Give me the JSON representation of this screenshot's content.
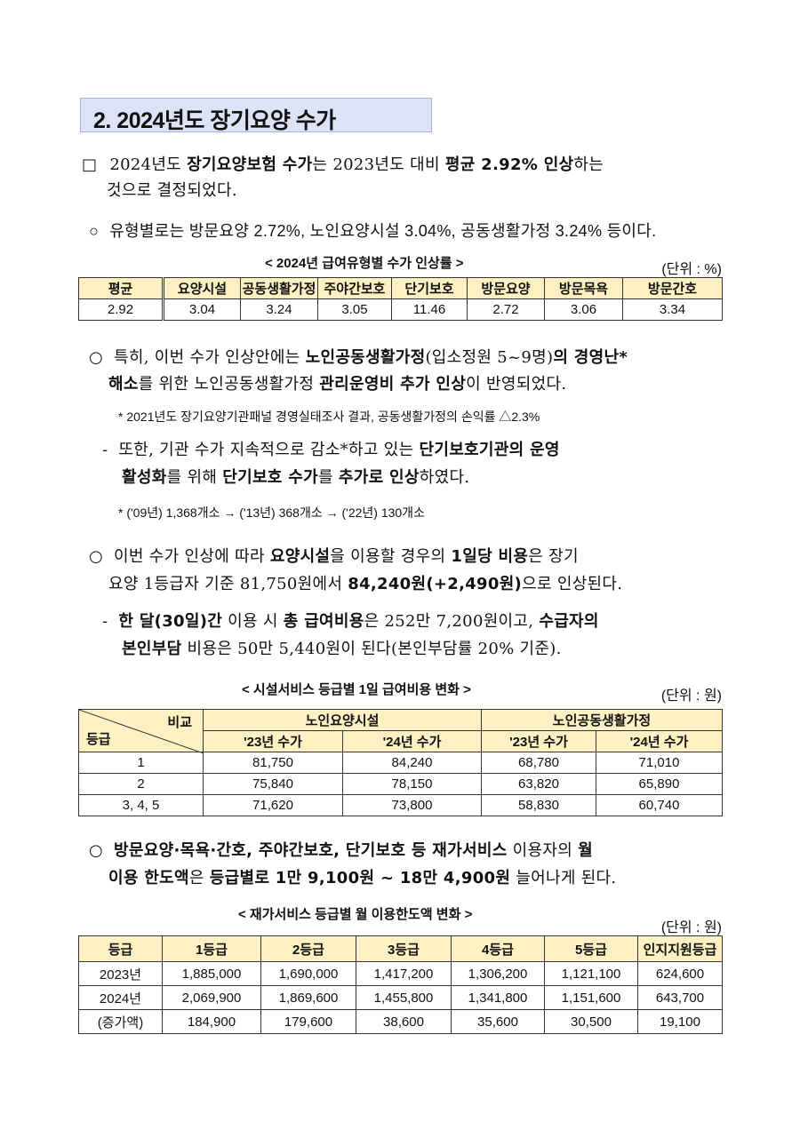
{
  "section_title": "2. 2024년도 장기요양 수가",
  "paragraphs": [
    {
      "id": "p1a",
      "bullet": "□",
      "segments": [
        {
          "t": "2024년도 ",
          "b": false
        },
        {
          "t": "장기요양보험 수가",
          "b": true
        },
        {
          "t": "는 2023년도 대비 ",
          "b": false
        },
        {
          "t": "평균 2.92% 인상",
          "b": true
        },
        {
          "t": "하는",
          "b": false
        }
      ]
    },
    {
      "id": "p1b",
      "segments": [
        {
          "t": "것으로 결정되었다.",
          "b": false
        }
      ]
    },
    {
      "id": "p2",
      "bullet": "○",
      "segments": [
        {
          "t": "유형별로는 방문요양 2.72%, 노인요양시설 3.04%, 공동생활가정 3.24% 등이다.",
          "b": false
        }
      ]
    },
    {
      "id": "p3a",
      "bullet": "○",
      "segments": [
        {
          "t": "특히, 이번 수가 인상안에는 ",
          "b": false
        },
        {
          "t": "노인공동생활가정",
          "b": true
        },
        {
          "t": "(입소정원 5~9명)",
          "b": false
        },
        {
          "t": "의 경영난*",
          "b": true
        }
      ]
    },
    {
      "id": "p3b",
      "segments": [
        {
          "t": "해소",
          "b": true
        },
        {
          "t": "를 위한 노인공동생활가정 ",
          "b": false
        },
        {
          "t": "관리운영비 추가 인상",
          "b": true
        },
        {
          "t": "이 반영되었다.",
          "b": false
        }
      ]
    },
    {
      "id": "p4a",
      "bullet": "-",
      "segments": [
        {
          "t": "또한, 기관 수가 지속적으로 감소*하고 있는 ",
          "b": false
        },
        {
          "t": "단기보호기관의 운영",
          "b": true
        }
      ]
    },
    {
      "id": "p4b",
      "segments": [
        {
          "t": "활성화",
          "b": true
        },
        {
          "t": "를 위해 ",
          "b": false
        },
        {
          "t": "단기보호 수가",
          "b": true
        },
        {
          "t": "를 ",
          "b": false
        },
        {
          "t": "추가로 인상",
          "b": true
        },
        {
          "t": "하였다.",
          "b": false
        }
      ]
    },
    {
      "id": "p5a",
      "bullet": "○",
      "segments": [
        {
          "t": "이번 수가 인상에 따라 ",
          "b": false
        },
        {
          "t": "요양시설",
          "b": true
        },
        {
          "t": "을 이용할 경우의 ",
          "b": false
        },
        {
          "t": "1일당 비용",
          "b": true
        },
        {
          "t": "은 장기",
          "b": false
        }
      ]
    },
    {
      "id": "p5b",
      "segments": [
        {
          "t": "요양 1등급자 기준 81,750원에서 ",
          "b": false
        },
        {
          "t": "84,240원(+2,490원)",
          "b": true
        },
        {
          "t": "으로 인상된다.",
          "b": false
        }
      ]
    },
    {
      "id": "p6a",
      "bullet": "-",
      "segments": [
        {
          "t": "한 달(30일)간",
          "b": true
        },
        {
          "t": " 이용 시 ",
          "b": false
        },
        {
          "t": "총 급여비용",
          "b": true
        },
        {
          "t": "은 252만 7,200원이고, ",
          "b": false
        },
        {
          "t": "수급자의",
          "b": true
        }
      ]
    },
    {
      "id": "p6b",
      "segments": [
        {
          "t": "본인부담",
          "b": true
        },
        {
          "t": " 비용은 50만 5,440원이 된다(본인부담률 20% 기준).",
          "b": false
        }
      ]
    },
    {
      "id": "p7a",
      "bullet": "○",
      "segments": [
        {
          "t": "방문요양·목욕·간호, 주야간보호, 단기보호 등 재가서비스",
          "b": true
        },
        {
          "t": " 이용자의 ",
          "b": false
        },
        {
          "t": "월",
          "b": true
        }
      ]
    },
    {
      "id": "p7b",
      "segments": [
        {
          "t": "이용 한도액",
          "b": true
        },
        {
          "t": "은 ",
          "b": false
        },
        {
          "t": "등급별로 1만 9,100원 ~ 18만 4,900원",
          "b": true
        },
        {
          "t": " 늘어나게 된다.",
          "b": false
        }
      ]
    }
  ],
  "notes": {
    "n1": "* 2021년도 장기요양기관패널 경영실태조사 결과, 공동생활가정의 손익률 △2.3%",
    "n2": "* ('09년) 1,368개소 → ('13년) 368개소 → ('22년) 130개소"
  },
  "table1": {
    "caption": "< 2024년 급여유형별 수가 인상률 >",
    "unit": "(단위 : %)",
    "headers": [
      "평균",
      "요양시설",
      "공동생활가정",
      "주야간보호",
      "단기보호",
      "방문요양",
      "방문목욕",
      "방문간호"
    ],
    "values": [
      "2.92",
      "3.04",
      "3.24",
      "3.05",
      "11.46",
      "2.72",
      "3.06",
      "3.34"
    ]
  },
  "table2": {
    "caption": "< 시설서비스 등급별 1일 급여비용 변화 >",
    "unit": "(단위 : 원)",
    "corner_top": "비교",
    "corner_bottom": "등급",
    "groups": [
      "노인요양시설",
      "노인공동생활가정"
    ],
    "subheaders": [
      "'23년 수가",
      "'24년 수가",
      "'23년 수가",
      "'24년 수가"
    ],
    "rows": [
      [
        "1",
        "81,750",
        "84,240",
        "68,780",
        "71,010"
      ],
      [
        "2",
        "75,840",
        "78,150",
        "63,820",
        "65,890"
      ],
      [
        "3, 4, 5",
        "71,620",
        "73,800",
        "58,830",
        "60,740"
      ]
    ]
  },
  "table3": {
    "caption": "< 재가서비스 등급별 월 이용한도액 변화 >",
    "unit": "(단위 : 원)",
    "headers": [
      "등급",
      "1등급",
      "2등급",
      "3등급",
      "4등급",
      "5등급",
      "인지지원등급"
    ],
    "rows": [
      [
        "2023년",
        "1,885,000",
        "1,690,000",
        "1,417,200",
        "1,306,200",
        "1,121,100",
        "624,600"
      ],
      [
        "2024년",
        "2,069,900",
        "1,869,600",
        "1,455,800",
        "1,341,800",
        "1,151,600",
        "643,700"
      ],
      [
        "(증가액)",
        "184,900",
        "179,600",
        "38,600",
        "35,600",
        "30,500",
        "19,100"
      ]
    ]
  },
  "colors": {
    "title_bg": "#dde3f6",
    "table_header_bg": "#fdf1c4"
  }
}
